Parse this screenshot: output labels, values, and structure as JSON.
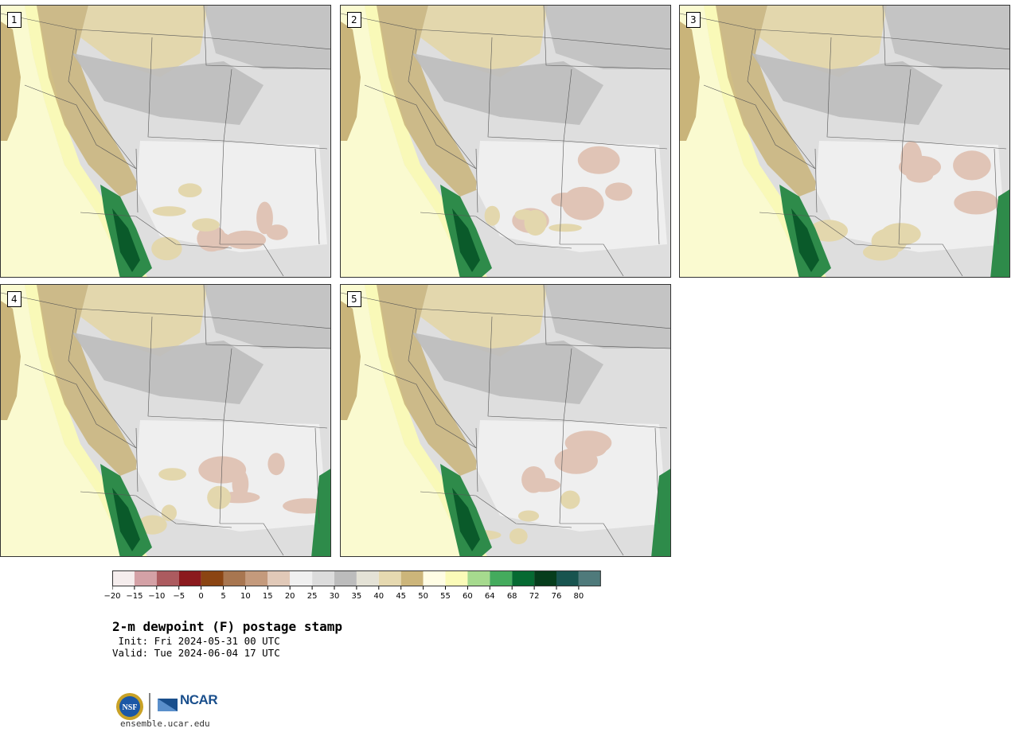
{
  "panels": [
    {
      "label": "1"
    },
    {
      "label": "2"
    },
    {
      "label": "3"
    },
    {
      "label": "4"
    },
    {
      "label": "5"
    }
  ],
  "colorbar": {
    "ticks": [
      "−20",
      "−15",
      "−10",
      "−5",
      "0",
      "5",
      "10",
      "15",
      "20",
      "25",
      "30",
      "35",
      "40",
      "45",
      "50",
      "55",
      "60",
      "64",
      "68",
      "72",
      "76",
      "80"
    ],
    "colors": [
      "#f5eded",
      "#d4a1a6",
      "#ac5b5f",
      "#8b1a1e",
      "#8b4513",
      "#a87650",
      "#c49a7c",
      "#e1c9b8",
      "#f0f0f0",
      "#dcdcdc",
      "#bcbcbc",
      "#e4e2d6",
      "#e6d9b0",
      "#ccb57a",
      "#fffde4",
      "#fbfbb8",
      "#a6da8e",
      "#44ab5d",
      "#066a32",
      "#063d1c",
      "#18544f",
      "#4f7a7b"
    ]
  },
  "title": "2-m dewpoint (F) postage stamp",
  "init": " Init: Fri 2024-05-31 00 UTC",
  "valid": "Valid: Tue 2024-06-04 17 UTC",
  "logos": {
    "nsf": "NSF",
    "ncar": "NCAR"
  },
  "site": "ensemble.ucar.edu",
  "palette": {
    "ocean": "#fafad0",
    "coast": "#f9f9b8",
    "tan": "#c9b47a",
    "lighttan": "#e3d7ad",
    "gray": "#bdbdbd",
    "lightgray": "#dedede",
    "pale": "#efefef",
    "pink": "#e0c4b6",
    "green": "#2e8b4a",
    "darkgreen": "#0a5a2a"
  }
}
